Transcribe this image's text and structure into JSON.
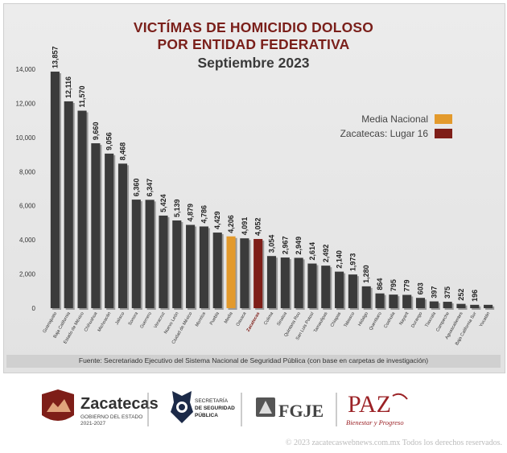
{
  "chart_data": {
    "type": "bar",
    "title_line1": "VICTÍMAS DE HOMICIDIO DOLOSO",
    "title_line2": "POR ENTIDAD FEDERATIVA",
    "subtitle": "Septiembre 2023",
    "categories": [
      "Guanajuato",
      "Baja California",
      "Estado de México",
      "Chihuahua",
      "Michoacán",
      "Jalisco",
      "Sonora",
      "Guerrero",
      "Veracruz",
      "Nuevo León",
      "Ciudad de México",
      "Morelos",
      "Puebla",
      "Media",
      "Oaxaca",
      "Zacatecas",
      "Colima",
      "Sinaloa",
      "Quintana Roo",
      "San Luis Potosí",
      "Tamaulipas",
      "Chiapas",
      "Tabasco",
      "Hidalgo",
      "Querétaro",
      "Coahuila",
      "Nayarit",
      "Durango",
      "Tlaxcala",
      "Campeche",
      "Aguascalientes",
      "Baja California Sur",
      "Yucatán"
    ],
    "values": [
      13857,
      12116,
      11570,
      9660,
      9056,
      8468,
      6360,
      6347,
      5424,
      5139,
      4879,
      4786,
      4429,
      4206,
      4091,
      4052,
      3054,
      2967,
      2949,
      2614,
      2492,
      2140,
      1973,
      1280,
      864,
      795,
      779,
      603,
      397,
      375,
      252,
      196,
      196
    ],
    "value_labels": [
      "13,857",
      "12,116",
      "11,570",
      "9,660",
      "9,056",
      "8,468",
      "6,360",
      "6,347",
      "5,424",
      "5,139",
      "4,879",
      "4,786",
      "4,429",
      "4,206",
      "4,091",
      "4,052",
      "3,054",
      "2,967",
      "2,949",
      "2,614",
      "2,492",
      "2,140",
      "1,973",
      "1,280",
      "864",
      "795",
      "779",
      "603",
      "397",
      "375",
      "252",
      "196",
      ""
    ],
    "yticks": [
      "0",
      "2,000",
      "4,000",
      "6,000",
      "8,000",
      "10,000",
      "12,000",
      "14,000"
    ],
    "ylim": [
      0,
      14000
    ],
    "highlight": {
      "Media": "#e39a2c",
      "Zacatecas": "#7e1e18"
    },
    "bar_color": "#3b3b3b",
    "legend": [
      {
        "label": "Media Nacional",
        "color": "#e39a2c"
      },
      {
        "label": "Zacatecas: Lugar 16",
        "color": "#7e1e18"
      }
    ],
    "legend_position": "top-right",
    "grid": false
  },
  "footer": {
    "source": "Fuente: Secretariado Ejecutivo del Sistema Nacional de Seguridad Pública (con base en carpetas de investigación)",
    "copyright": "© 2023 zacatecaswebnews.com.mx Todos los derechos reservados."
  },
  "logos": {
    "zacatecas_name": "Zacatecas",
    "zacatecas_sub1": "GOBIERNO DEL ESTADO",
    "zacatecas_sub2": "2021-2027",
    "seguridad_line1": "SECRETARÍA",
    "seguridad_line2": "DE SEGURIDAD",
    "seguridad_line3": "PÚBLICA",
    "fgje": "FGJE",
    "paz": "PAZ",
    "paz_sub": "Bienestar y Progreso"
  }
}
